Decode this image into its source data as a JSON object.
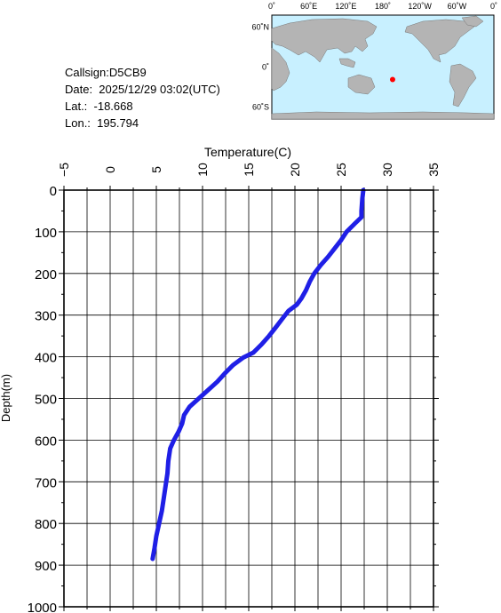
{
  "station": {
    "callsign_text": "Callsign:D5CB9",
    "date_text": "Date:  2025/12/29 03:02(UTC)",
    "lat_text": "Lat.:  -18.668",
    "lon_text": "Lon.:  195.794"
  },
  "map": {
    "lon_labels": [
      "0˚",
      "60˚E",
      "120˚E",
      "180˚",
      "120˚W",
      "60˚W",
      "0˚"
    ],
    "lat_labels": [
      "60˚N",
      "0˚",
      "60˚S"
    ],
    "ocean_color": "#c8f0ff",
    "land_color": "#b4b4b4",
    "marker_color": "#ff0000",
    "marker_lat": -18.668,
    "marker_lon": 195.794
  },
  "chart_data": {
    "type": "line",
    "xlabel": "Temperature(C)",
    "ylabel": "Depth(m)",
    "xlim": [
      -5,
      35
    ],
    "ylim": [
      0,
      1000
    ],
    "x_ticks": [
      -5,
      0,
      5,
      10,
      15,
      20,
      25,
      30,
      35
    ],
    "y_ticks": [
      0,
      100,
      200,
      300,
      400,
      500,
      600,
      700,
      800,
      900,
      1000
    ],
    "grid": true,
    "line_color": "#1f1fe6",
    "series": [
      {
        "x": [
          27.4,
          27.3,
          27.2,
          27.2,
          26.5,
          25.6,
          25.0,
          24.3,
          23.6,
          22.8,
          22.1,
          21.6,
          21.2,
          20.7,
          20.2,
          19.3,
          18.6,
          17.9,
          17.2,
          16.4,
          15.5,
          14.4,
          13.3,
          12.4,
          11.6,
          10.6,
          9.6,
          8.6,
          8.0,
          7.8,
          7.4,
          6.9,
          6.5,
          6.3,
          6.2,
          6.0,
          5.8,
          5.6,
          5.3,
          5.0,
          4.8,
          4.6
        ],
        "y": [
          0,
          20,
          50,
          65,
          80,
          100,
          120,
          140,
          160,
          180,
          200,
          220,
          240,
          260,
          275,
          290,
          310,
          330,
          350,
          370,
          390,
          402,
          420,
          440,
          460,
          480,
          500,
          520,
          540,
          560,
          580,
          600,
          620,
          650,
          680,
          710,
          740,
          770,
          800,
          830,
          860,
          885
        ]
      }
    ]
  }
}
